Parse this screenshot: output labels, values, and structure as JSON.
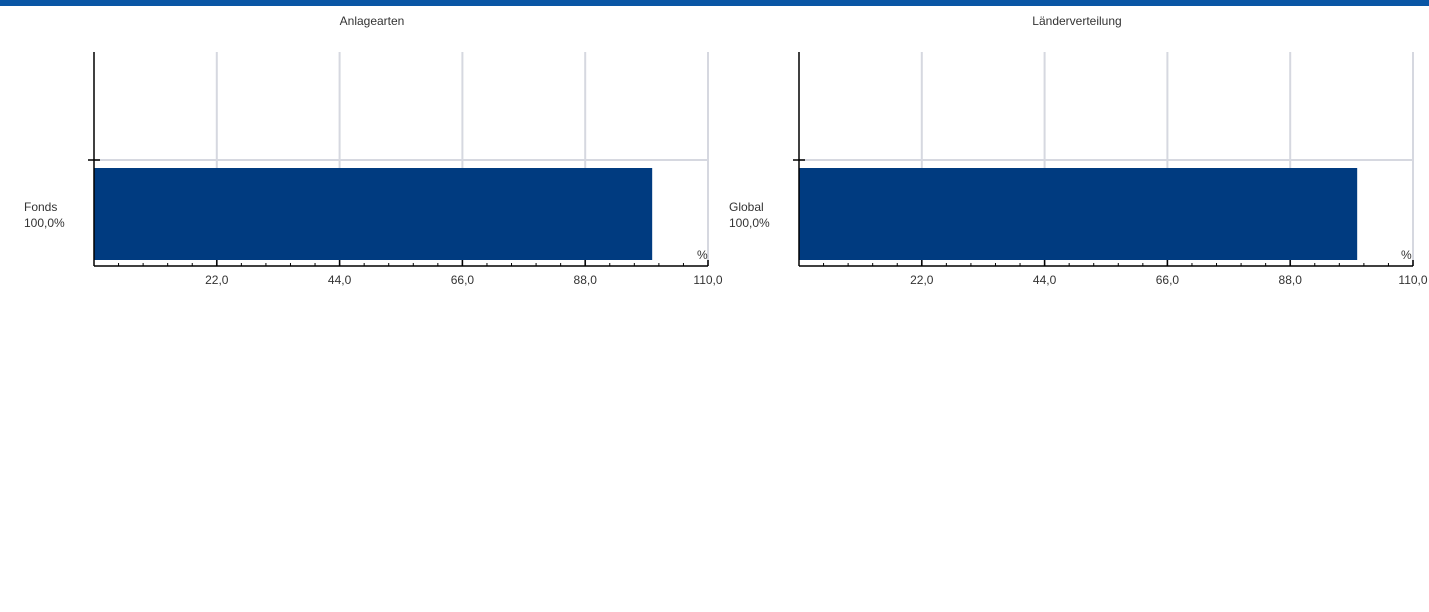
{
  "theme": {
    "accent": "#0a56a5",
    "bar_color": "#003b80",
    "grid_color": "#d6d8e0",
    "axis_color": "#000000"
  },
  "chart_data": [
    {
      "type": "bar",
      "orientation": "horizontal",
      "title": "Anlagearten",
      "categories": [
        "Fonds"
      ],
      "category_value_labels": [
        "100,0%"
      ],
      "values": [
        100.0
      ],
      "xlabel": "%",
      "xlim": [
        0,
        110
      ],
      "xticks": [
        22,
        44,
        66,
        88,
        110
      ],
      "xtick_labels": [
        "22,0",
        "44,0",
        "66,0",
        "88,0",
        "110,0"
      ],
      "grid": true
    },
    {
      "type": "bar",
      "orientation": "horizontal",
      "title": "Länderverteilung",
      "categories": [
        "Global"
      ],
      "category_value_labels": [
        "100,0%"
      ],
      "values": [
        100.0
      ],
      "xlabel": "%",
      "xlim": [
        0,
        110
      ],
      "xticks": [
        22,
        44,
        66,
        88,
        110
      ],
      "xtick_labels": [
        "22,0",
        "44,0",
        "66,0",
        "88,0",
        "110,0"
      ],
      "grid": true
    }
  ]
}
